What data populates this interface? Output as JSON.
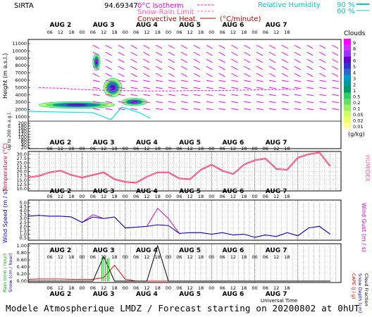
{
  "header": {
    "station": "SIRTA",
    "coords": "94.69347",
    "legend_isotherm": "0°C Isotherm",
    "legend_snow_rain": "Snow-Rain Limit",
    "legend_convective": "Convective Heat.",
    "legend_convective_unit": "(°C/minute)",
    "legend_rh_label": "Relative Humidity",
    "legend_rh_90": "90 %",
    "legend_rh_60": "60 %"
  },
  "footer": {
    "text": "Modele Atmospherique LMDZ / Forecast starting on 20200802 at 0hUT"
  },
  "time_axis": {
    "day_labels": [
      "AUG  2",
      "AUG  3",
      "AUG  4",
      "AUG  5",
      "AUG  6",
      "AUG  7"
    ],
    "hour_labels": [
      "06",
      "12",
      "18",
      "00",
      "06",
      "12",
      "18",
      "00",
      "06",
      "12",
      "18",
      "00",
      "06",
      "12",
      "18",
      "00",
      "06",
      "12",
      "18",
      "00",
      "06",
      "12",
      "18"
    ],
    "xlabel": "Universal Time"
  },
  "colors": {
    "isotherm": "#ff00ff",
    "temperature": "#ff0033",
    "humidex": "#ff6699",
    "wind_speed": "#0000cc",
    "wind_gust": "#cc00cc",
    "rain": "#ff0000",
    "snow": "#00bb00",
    "cape": "#000000",
    "relative_humidity": "#00e5ee"
  },
  "panels": {
    "cloud": {
      "ylabel": "Height (m a.s.l.)",
      "ylabel2": "Up to 200 m a.g.l.",
      "yticks": [
        "11000",
        "10000",
        "9000",
        "8000",
        "7000",
        "6000",
        "5000",
        "4000",
        "3000",
        "2000",
        "1000",
        "200",
        "180",
        "160",
        "140",
        "120",
        "100",
        "80",
        "60",
        "40",
        "20"
      ]
    },
    "clouds_legend": {
      "title": "Clouds",
      "ticks": [
        "9",
        "8",
        "7",
        "6",
        "5",
        "4",
        "3",
        "2",
        "1",
        "0.5",
        "0.2",
        "0.1",
        "0.05",
        "0.02",
        "0.01"
      ],
      "unit": "(g/kg)"
    },
    "temp": {
      "ylabel": "Temperature (°C)",
      "ylabel_right": "HUMIDEX",
      "yticks": [
        "30.0",
        "27.5",
        "25.0",
        "22.5",
        "20.0",
        "17.5",
        "15.0",
        "12.5",
        "10.0"
      ]
    },
    "wind": {
      "ylabel": "Wind Speed (m / s)",
      "ylabel_right": "Wind Gust (m / s)",
      "yticks": [
        "5.0",
        "4.5",
        "4.0",
        "3.5",
        "3.0",
        "2.5",
        "2.0",
        "1.5",
        "1.0",
        "0.5"
      ]
    },
    "precip": {
      "ylabel_left1": "Rain (mm / hour)",
      "ylabel_left2": "Snow (cm / hour)",
      "ylabel_right1": "CAPE (J / g)",
      "ylabel_right2": "Snow Depth (cm)",
      "ylabel_right3": "Cloud Fraction",
      "yticks": [
        "1.00",
        "0.80",
        "0.60",
        "0.40",
        "0.20",
        "0.00"
      ]
    }
  },
  "chart_data": [
    {
      "type": "area",
      "title": "Clouds",
      "ylabel": "Height (m a.s.l.)",
      "ylim": [
        0,
        11000
      ],
      "x_hours": [
        0,
        12,
        24,
        36,
        48,
        60,
        72,
        84,
        96,
        108,
        120,
        132,
        144
      ],
      "cloud_layers": [
        {
          "x_hours": [
            0,
            42
          ],
          "height_m": [
            1300,
            2300
          ],
          "peak_g_kg": 1
        },
        {
          "x_hours": [
            30,
            34
          ],
          "height_m": [
            7000,
            9500
          ],
          "peak_g_kg": 2
        },
        {
          "x_hours": [
            36,
            46
          ],
          "height_m": [
            3000,
            5800
          ],
          "peak_g_kg": 2
        },
        {
          "x_hours": [
            46,
            60
          ],
          "height_m": [
            1700,
            2800
          ],
          "peak_g_kg": 0.5
        }
      ],
      "isotherm_m": [
        4400,
        4300,
        4100,
        4000,
        3950,
        3900,
        3900,
        3950,
        3950,
        4000,
        4050,
        4100,
        4150
      ]
    },
    {
      "type": "line",
      "ylabel": "Temperature (°C)",
      "ylim": [
        10,
        30
      ],
      "x_hours": [
        0,
        6,
        12,
        18,
        24,
        30,
        36,
        42,
        48,
        54,
        60,
        66,
        72,
        78,
        84,
        90,
        96,
        102,
        108,
        114,
        120,
        126,
        132,
        138,
        144,
        150,
        156,
        162,
        168
      ],
      "series": [
        {
          "name": "Temperature",
          "values": [
            16.5,
            17.5,
            19.5,
            20.5,
            18,
            16.5,
            18,
            19.5,
            15.5,
            14,
            13.5,
            17,
            19.5,
            19.5,
            16,
            15.5,
            21,
            24,
            20.5,
            18.5,
            24,
            26.5,
            27.5,
            21.5,
            21,
            28,
            30,
            31,
            23
          ]
        },
        {
          "name": "HUMIDEX",
          "values": [
            16.5,
            17.5,
            19.5,
            20.5,
            18,
            16.5,
            18,
            19.5,
            15.5,
            14,
            13.5,
            17,
            19.5,
            19.5,
            16,
            15.5,
            21,
            24,
            20.5,
            18.5,
            24,
            26.5,
            27.5,
            21.5,
            21,
            28,
            30,
            31,
            23
          ]
        }
      ]
    },
    {
      "type": "line",
      "ylabel": "Wind Speed (m / s)",
      "ylim": [
        0,
        5
      ],
      "x_hours": [
        0,
        6,
        12,
        18,
        24,
        30,
        36,
        42,
        48,
        54,
        60,
        66,
        72,
        78,
        84,
        90,
        96,
        102,
        108,
        114,
        120,
        126,
        132,
        138,
        144,
        150,
        156,
        162,
        168
      ],
      "series": [
        {
          "name": "Wind Speed",
          "values": [
            3.3,
            3.4,
            3.3,
            3.3,
            3.2,
            2.5,
            3.2,
            3.0,
            3.2,
            1.8,
            1.9,
            2.0,
            2.2,
            2.1,
            1.1,
            1.2,
            1.2,
            1.0,
            1.2,
            0.9,
            1.0,
            0.6,
            0.9,
            0.7,
            1.2,
            0.8,
            1.8,
            2.0,
            1.0
          ]
        },
        {
          "name": "Wind Gust",
          "values": [
            3.3,
            3.4,
            3.3,
            3.3,
            3.2,
            2.5,
            3.5,
            3.0,
            3.2,
            1.8,
            1.9,
            2.0,
            4.3,
            3.0,
            1.1,
            1.2,
            1.2,
            1.0,
            1.2,
            0.9,
            1.0,
            0.6,
            0.9,
            0.7,
            1.2,
            0.8,
            1.8,
            2.0,
            1.0
          ]
        }
      ]
    },
    {
      "type": "line",
      "ylabel": "Rain (mm / hour)",
      "ylim": [
        0,
        1
      ],
      "x_hours": [
        0,
        6,
        12,
        18,
        24,
        30,
        36,
        42,
        48,
        54,
        60,
        66,
        72,
        78,
        84,
        90,
        96,
        102,
        108,
        114,
        120,
        126,
        132,
        138,
        144,
        150,
        156,
        162,
        168
      ],
      "series": [
        {
          "name": "Rain",
          "values": [
            0.05,
            0.06,
            0.06,
            0.06,
            0.05,
            0.05,
            0.05,
            0.1,
            0.45,
            0.05,
            0.0,
            0.0,
            0.0,
            0.0,
            0.0,
            0.0,
            0.0,
            0.0,
            0.0,
            0.0,
            0.0,
            0.0,
            0.0,
            0.0,
            0.0,
            0.0,
            0.0,
            0.0,
            0.0
          ]
        },
        {
          "name": "CAPE",
          "values": [
            0.0,
            0.0,
            0.0,
            0.0,
            0.0,
            0.0,
            0.0,
            0.7,
            0.0,
            0.0,
            0.0,
            0.0,
            1.0,
            0.0,
            0.0,
            0.0,
            0.0,
            0.0,
            0.0,
            0.0,
            0.0,
            0.0,
            0.0,
            0.0,
            0.0,
            0.0,
            0.0,
            0.0,
            0.0
          ]
        }
      ],
      "snow_bars_hours": [
        41,
        42,
        43,
        44,
        45
      ]
    }
  ]
}
